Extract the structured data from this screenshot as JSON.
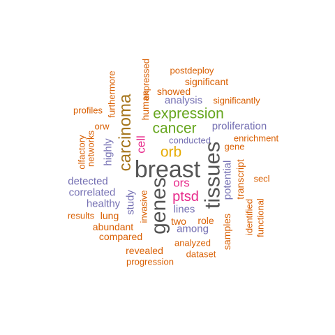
{
  "colors": {
    "orange": "#d95f02",
    "purple": "#7570b3",
    "brown": "#a6761d",
    "green": "#66a61e",
    "gold": "#e6ab02",
    "magenta": "#e7298a",
    "gray": "#555555"
  },
  "words": [
    {
      "text": "postdeploy"
    },
    {
      "text": "expressed"
    },
    {
      "text": "furthermore"
    },
    {
      "text": "significant"
    },
    {
      "text": "human"
    },
    {
      "text": "showed"
    },
    {
      "text": "analysis"
    },
    {
      "text": "significantly"
    },
    {
      "text": "carcinoma"
    },
    {
      "text": "expression"
    },
    {
      "text": "profiles"
    },
    {
      "text": "orw"
    },
    {
      "text": "cancer"
    },
    {
      "text": "proliferation"
    },
    {
      "text": "enrichment"
    },
    {
      "text": "gene"
    },
    {
      "text": "conducted"
    },
    {
      "text": "orb"
    },
    {
      "text": "cell"
    },
    {
      "text": "olfactory"
    },
    {
      "text": "networks"
    },
    {
      "text": "highly"
    },
    {
      "text": "tissues"
    },
    {
      "text": "breast"
    },
    {
      "text": "potential"
    },
    {
      "text": "transcript"
    },
    {
      "text": "secl"
    },
    {
      "text": "detected"
    },
    {
      "text": "ors"
    },
    {
      "text": "correlated"
    },
    {
      "text": "genes"
    },
    {
      "text": "ptsd"
    },
    {
      "text": "healthy"
    },
    {
      "text": "study"
    },
    {
      "text": "invasive"
    },
    {
      "text": "lines"
    },
    {
      "text": "results"
    },
    {
      "text": "lung"
    },
    {
      "text": "two"
    },
    {
      "text": "role"
    },
    {
      "text": "identified"
    },
    {
      "text": "functional"
    },
    {
      "text": "abundant"
    },
    {
      "text": "among"
    },
    {
      "text": "compared"
    },
    {
      "text": "samples"
    },
    {
      "text": "analyzed"
    },
    {
      "text": "revealed"
    },
    {
      "text": "dataset"
    },
    {
      "text": "progression"
    }
  ]
}
